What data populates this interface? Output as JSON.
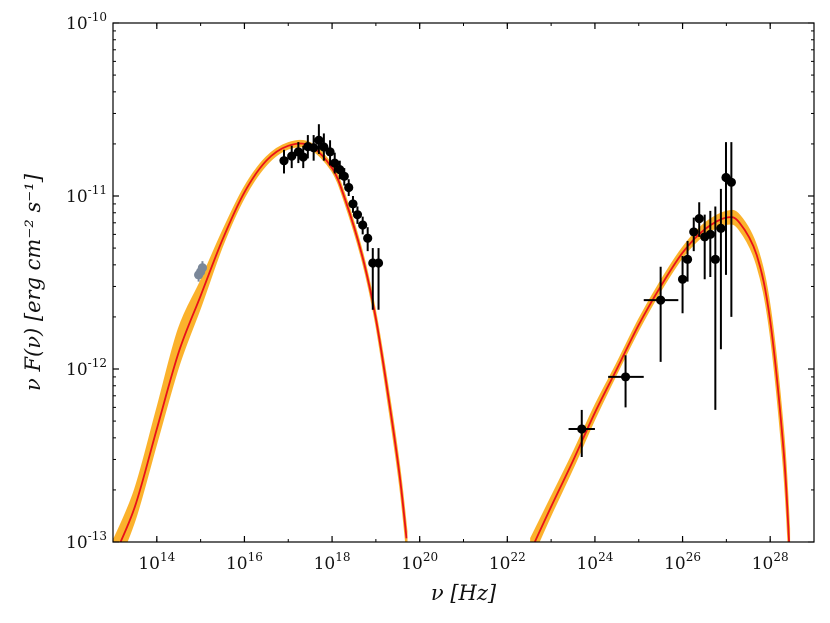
{
  "chart_data": {
    "type": "scatter",
    "title": "",
    "xlabel": "ν [Hz]",
    "ylabel": "ν F(ν) [erg cm⁻² s⁻¹]",
    "xscale": "log",
    "yscale": "log",
    "xlim": [
      10000000000000.0,
      1e+29
    ],
    "ylim": [
      1e-13,
      1e-10
    ],
    "grid": false,
    "legend": "none",
    "x_ticks": [
      {
        "value": 100000000000000.0,
        "label": "10^14"
      },
      {
        "value": 1e+16,
        "label": "10^16"
      },
      {
        "value": 1e+18,
        "label": "10^18"
      },
      {
        "value": 1e+20,
        "label": "10^20"
      },
      {
        "value": 1e+22,
        "label": "10^22"
      },
      {
        "value": 1e+24,
        "label": "10^24"
      },
      {
        "value": 1e+26,
        "label": "10^26"
      },
      {
        "value": 1e+28,
        "label": "10^28"
      }
    ],
    "y_ticks": [
      {
        "value": 1e-13,
        "label": "10^-13"
      },
      {
        "value": 1e-12,
        "label": "10^-12"
      },
      {
        "value": 1e-11,
        "label": "10^-11"
      },
      {
        "value": 1e-10,
        "label": "10^-10"
      }
    ],
    "colors": {
      "model_line": "#e8101a",
      "uncertainty_band": "#fbb22c",
      "data_points": "#000000",
      "optical_points": "#7a8799"
    },
    "series": [
      {
        "kind": "model-band",
        "note_visual": "synchrotron component",
        "x": [
          10000000000000.0,
          31600000000000.0,
          100000000000000.0,
          316000000000000.0,
          1000000000000000.0,
          3160000000000000.0,
          1e+16,
          3.16e+16,
          1e+17,
          3.16e+17,
          1e+18,
          2e+18,
          5e+18,
          1e+19,
          2e+19,
          3.5e+19,
          5e+19
        ],
        "y": [
          8e-14,
          1.6e-13,
          4.5e-13,
          1.25e-12,
          2.65e-12,
          5.6e-12,
          1.05e-11,
          1.6e-11,
          1.95e-11,
          1.95e-11,
          1.45e-11,
          9.5e-12,
          4.4e-12,
          1.95e-12,
          6.5e-13,
          2.4e-13,
          1.05e-13
        ],
        "y_low": [
          6.5e-14,
          1.35e-13,
          3.8e-13,
          1.05e-12,
          2.3e-12,
          5.2e-12,
          9.9e-12,
          1.52e-11,
          1.88e-11,
          1.88e-11,
          1.4e-11,
          9.1e-12,
          4.2e-12,
          1.85e-12,
          6e-13,
          2.2e-13,
          9.5e-14
        ],
        "y_high": [
          1e-13,
          2e-13,
          5.8e-13,
          1.7e-12,
          3.2e-12,
          6.2e-12,
          1.12e-11,
          1.67e-11,
          2.02e-11,
          2.02e-11,
          1.5e-11,
          9.9e-12,
          4.6e-12,
          2.05e-12,
          7e-13,
          2.6e-13,
          1.15e-13
        ]
      },
      {
        "kind": "model-band",
        "note_visual": "inverse-Compton component",
        "x": [
          3.5e+22,
          1e+23,
          3.16e+23,
          1e+24,
          3.16e+24,
          1e+25,
          3.16e+25,
          1e+26,
          3.16e+26,
          1e+27,
          2e+27,
          5e+27,
          1e+28,
          2e+28,
          2.7e+28
        ],
        "y": [
          9e-14,
          1.6e-13,
          2.95e-13,
          5.6e-13,
          1e-12,
          1.8e-12,
          3e-12,
          4.7e-12,
          6.4e-12,
          7.5e-12,
          7e-12,
          4.5e-12,
          1.9e-12,
          3.5e-13,
          1e-13
        ],
        "y_low": [
          8e-14,
          1.45e-13,
          2.7e-13,
          5.2e-13,
          9.5e-13,
          1.7e-12,
          2.85e-12,
          4.45e-12,
          6e-12,
          6.9e-12,
          6.4e-12,
          4e-12,
          1.65e-12,
          2.9e-13,
          8.5e-14
        ],
        "y_high": [
          1.05e-13,
          1.8e-13,
          3.25e-13,
          6.1e-13,
          1.07e-12,
          1.92e-12,
          3.2e-12,
          5e-12,
          6.9e-12,
          8.1e-12,
          7.7e-12,
          5e-12,
          2.2e-12,
          4.2e-13,
          1.2e-13
        ]
      },
      {
        "kind": "points",
        "note_visual": "optical",
        "x": [
          900000000000000.0,
          1000000000000000.0,
          1100000000000000.0
        ],
        "y": [
          3.5e-12,
          3.65e-12,
          3.85e-12
        ],
        "y_low": [
          3.2e-12,
          3.35e-12,
          3.5e-12
        ],
        "y_high": [
          3.8e-12,
          4e-12,
          4.2e-12
        ],
        "x_low": [
          null,
          null,
          null
        ],
        "x_high": [
          null,
          null,
          null
        ]
      },
      {
        "kind": "points",
        "note_visual": "X-ray",
        "x": [
          8e+16,
          1.2e+17,
          1.7e+17,
          2.2e+17,
          2.8e+17,
          3.8e+17,
          5e+17,
          6.5e+17,
          9e+17,
          1.15e+18,
          1.5e+18,
          1.9e+18,
          2.4e+18,
          3e+18,
          3.8e+18,
          5e+18,
          6.5e+18,
          8.5e+18,
          1.15e+19
        ],
        "y": [
          1.6e-11,
          1.7e-11,
          1.8e-11,
          1.68e-11,
          1.93e-11,
          1.9e-11,
          2.1e-11,
          1.92e-11,
          1.8e-11,
          1.55e-11,
          1.42e-11,
          1.3e-11,
          1.12e-11,
          9e-12,
          7.8e-12,
          6.8e-12,
          5.7e-12,
          4.1e-12,
          4.1e-12
        ],
        "y_low": [
          1.35e-11,
          1.45e-11,
          1.55e-11,
          1.45e-11,
          1.65e-11,
          1.6e-11,
          1.75e-11,
          1.6e-11,
          1.5e-11,
          1.35e-11,
          1.25e-11,
          1.15e-11,
          1e-11,
          8e-12,
          6.9e-12,
          6e-12,
          4.8e-12,
          2.2e-12,
          2.2e-12
        ],
        "y_high": [
          1.85e-11,
          1.95e-11,
          2.05e-11,
          1.95e-11,
          2.25e-11,
          2.25e-11,
          2.6e-11,
          2.3e-11,
          2.1e-11,
          1.78e-11,
          1.6e-11,
          1.45e-11,
          1.25e-11,
          1e-11,
          8.7e-12,
          7.6e-12,
          6.6e-12,
          5e-12,
          5e-12
        ],
        "x_low": [
          null,
          null,
          null,
          null,
          null,
          null,
          null,
          null,
          null,
          null,
          null,
          null,
          null,
          null,
          null,
          null,
          null,
          null,
          null
        ],
        "x_high": [
          null,
          null,
          null,
          null,
          null,
          null,
          null,
          null,
          null,
          null,
          null,
          null,
          null,
          null,
          null,
          null,
          null,
          null,
          null
        ]
      },
      {
        "kind": "points",
        "note_visual": "gamma-ray",
        "x": [
          5e+23,
          5e+24,
          3.16e+25,
          1e+26,
          1.3e+26,
          1.8e+26,
          2.4e+26,
          3.2e+26,
          4.3e+26,
          5.6e+26,
          7.5e+26,
          9.8e+26,
          1.3e+27
        ],
        "y": [
          4.5e-13,
          9e-13,
          2.5e-12,
          3.3e-12,
          4.3e-12,
          6.2e-12,
          7.4e-12,
          5.8e-12,
          6e-12,
          4.3e-12,
          6.5e-12,
          1.28e-11,
          1.2e-11
        ],
        "y_low": [
          3.1e-13,
          6e-13,
          1.1e-12,
          2.1e-12,
          3.2e-12,
          4.8e-12,
          5.8e-12,
          3.3e-12,
          3.4e-12,
          5.8e-13,
          1.3e-12,
          3.5e-12,
          2e-12
        ],
        "y_high": [
          5.8e-13,
          1.2e-12,
          3.9e-12,
          4.5e-12,
          5.5e-12,
          7.5e-12,
          9.2e-12,
          7.8e-12,
          8.2e-12,
          8.7e-12,
          1.1e-11,
          2.05e-11,
          2.05e-11
        ],
        "x_low": [
          2.5e+23,
          2e+24,
          1.3e+25,
          null,
          null,
          null,
          null,
          null,
          null,
          null,
          null,
          null,
          null
        ],
        "x_high": [
          1e+24,
          1.3e+25,
          8e+25,
          null,
          null,
          null,
          null,
          null,
          null,
          null,
          null,
          null,
          null
        ]
      }
    ]
  }
}
